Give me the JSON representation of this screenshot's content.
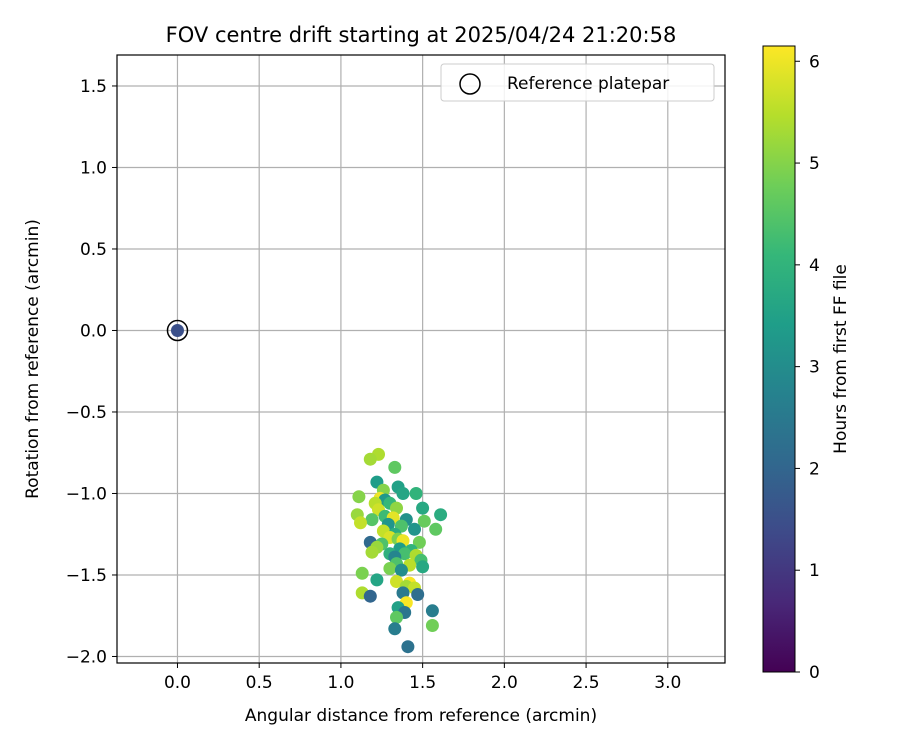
{
  "chart_data": {
    "type": "scatter",
    "title": "FOV centre drift starting at 2025/04/24 21:20:58",
    "xlabel": "Angular distance from reference (arcmin)",
    "ylabel": "Rotation from reference (arcmin)",
    "xlim": [
      -0.37,
      3.35
    ],
    "ylim": [
      -2.04,
      1.69
    ],
    "xticks": [
      0.0,
      0.5,
      1.0,
      1.5,
      2.0,
      2.5,
      3.0
    ],
    "xtick_labels": [
      "0.0",
      "0.5",
      "1.0",
      "1.5",
      "2.0",
      "2.5",
      "3.0"
    ],
    "yticks": [
      1.5,
      1.0,
      0.5,
      0.0,
      -0.5,
      -1.0,
      -1.5,
      -2.0
    ],
    "ytick_labels": [
      "1.5",
      "1.0",
      "0.5",
      "0.0",
      "−0.5",
      "−1.0",
      "−1.5",
      "−2.0"
    ],
    "grid": true,
    "legend": {
      "placement": "upper right",
      "entries": [
        "Reference platepar"
      ]
    },
    "colorbar": {
      "label": "Hours from first FF file",
      "colormap": "viridis",
      "range": [
        0,
        6.15
      ],
      "ticks": [
        0,
        1,
        2,
        3,
        4,
        5,
        6
      ],
      "tick_labels": [
        "0",
        "1",
        "2",
        "3",
        "4",
        "5",
        "6"
      ]
    },
    "reference": {
      "x": 0.0,
      "y": 0.0,
      "hours": 1.5
    },
    "points": [
      [
        1.23,
        -0.76,
        5.4
      ],
      [
        1.18,
        -0.79,
        5.3
      ],
      [
        1.33,
        -0.84,
        4.6
      ],
      [
        1.22,
        -0.93,
        3.4
      ],
      [
        1.35,
        -0.96,
        3.5
      ],
      [
        1.26,
        -0.98,
        5.0
      ],
      [
        1.38,
        -1.0,
        3.6
      ],
      [
        1.46,
        -1.0,
        4.0
      ],
      [
        1.11,
        -1.02,
        5.0
      ],
      [
        1.24,
        -1.03,
        6.0
      ],
      [
        1.27,
        -1.04,
        3.3
      ],
      [
        1.3,
        -1.06,
        4.1
      ],
      [
        1.21,
        -1.06,
        5.5
      ],
      [
        1.34,
        -1.09,
        5.1
      ],
      [
        1.5,
        -1.09,
        3.7
      ],
      [
        1.23,
        -1.1,
        5.7
      ],
      [
        1.1,
        -1.13,
        5.2
      ],
      [
        1.61,
        -1.13,
        3.8
      ],
      [
        1.27,
        -1.14,
        4.2
      ],
      [
        1.32,
        -1.15,
        5.9
      ],
      [
        1.19,
        -1.16,
        4.5
      ],
      [
        1.4,
        -1.16,
        3.1
      ],
      [
        1.51,
        -1.17,
        4.7
      ],
      [
        1.12,
        -1.18,
        5.6
      ],
      [
        1.29,
        -1.19,
        3.2
      ],
      [
        1.37,
        -1.2,
        4.4
      ],
      [
        1.45,
        -1.22,
        3.2
      ],
      [
        1.58,
        -1.22,
        4.6
      ],
      [
        1.26,
        -1.23,
        5.6
      ],
      [
        1.33,
        -1.25,
        3.8
      ],
      [
        1.3,
        -1.27,
        5.8
      ],
      [
        1.35,
        -1.28,
        4.9
      ],
      [
        1.38,
        -1.29,
        6.0
      ],
      [
        1.18,
        -1.3,
        2.1
      ],
      [
        1.25,
        -1.31,
        4.4
      ],
      [
        1.48,
        -1.3,
        4.8
      ],
      [
        1.22,
        -1.33,
        5.2
      ],
      [
        1.36,
        -1.34,
        3.4
      ],
      [
        1.43,
        -1.35,
        4.0
      ],
      [
        1.19,
        -1.36,
        5.3
      ],
      [
        1.39,
        -1.37,
        4.3
      ],
      [
        1.3,
        -1.37,
        3.9
      ],
      [
        1.46,
        -1.38,
        5.4
      ],
      [
        1.33,
        -1.39,
        2.8
      ],
      [
        1.49,
        -1.41,
        4.3
      ],
      [
        1.34,
        -1.43,
        4.4
      ],
      [
        1.42,
        -1.44,
        5.5
      ],
      [
        1.3,
        -1.46,
        4.9
      ],
      [
        1.5,
        -1.45,
        3.7
      ],
      [
        1.37,
        -1.47,
        3.0
      ],
      [
        1.13,
        -1.49,
        4.9
      ],
      [
        1.22,
        -1.53,
        3.6
      ],
      [
        1.34,
        -1.54,
        5.7
      ],
      [
        1.42,
        -1.55,
        6.1
      ],
      [
        1.4,
        -1.57,
        5.3
      ],
      [
        1.45,
        -1.58,
        5.6
      ],
      [
        1.38,
        -1.61,
        2.5
      ],
      [
        1.47,
        -1.62,
        2.2
      ],
      [
        1.13,
        -1.61,
        5.4
      ],
      [
        1.18,
        -1.63,
        2.0
      ],
      [
        1.4,
        -1.67,
        6.1
      ],
      [
        1.35,
        -1.7,
        3.5
      ],
      [
        1.56,
        -1.72,
        2.6
      ],
      [
        1.39,
        -1.73,
        2.4
      ],
      [
        1.34,
        -1.76,
        4.6
      ],
      [
        1.56,
        -1.81,
        4.8
      ],
      [
        1.33,
        -1.83,
        2.6
      ],
      [
        1.41,
        -1.94,
        2.3
      ]
    ]
  }
}
